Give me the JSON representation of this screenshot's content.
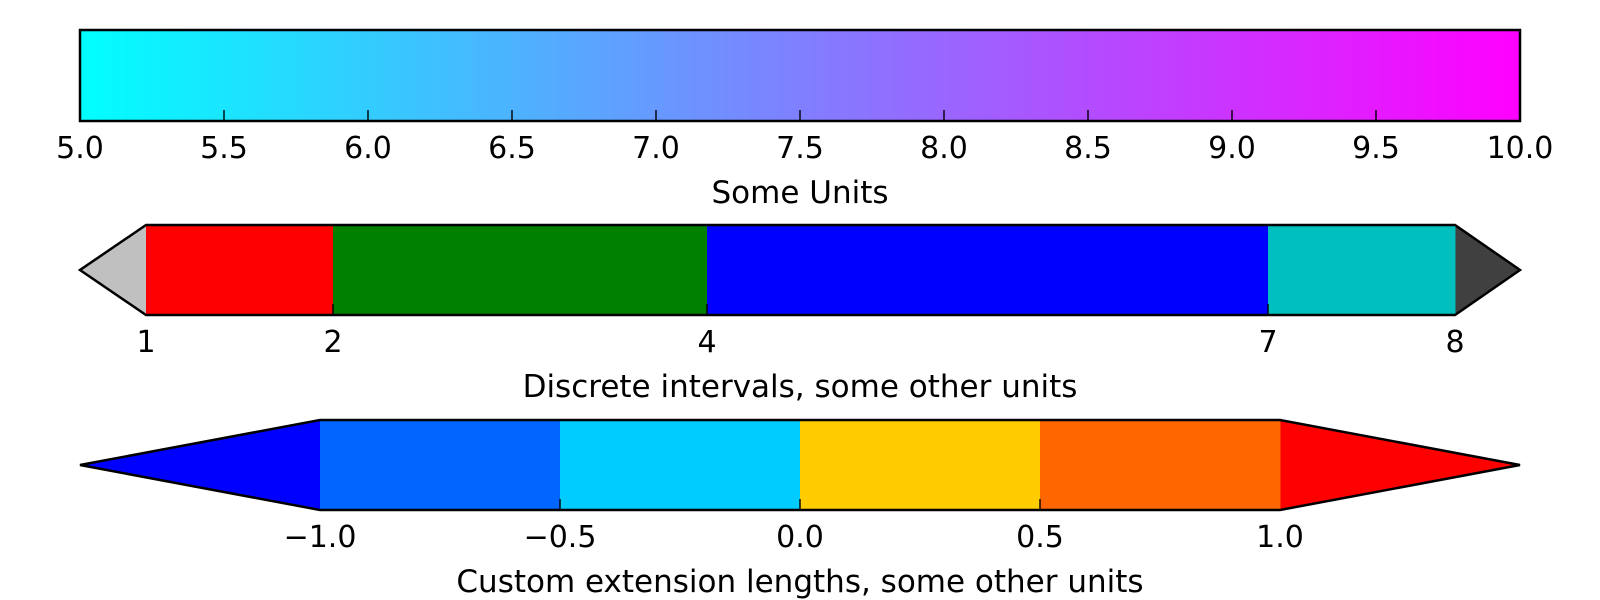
{
  "chart_data": [
    {
      "type": "colorbar",
      "label": "Some Units",
      "range": [
        5.0,
        10.0
      ],
      "gradient": [
        "#00ffff",
        "#ff00ff"
      ],
      "ticks": [
        5.0,
        5.5,
        6.0,
        6.5,
        7.0,
        7.5,
        8.0,
        8.5,
        9.0,
        9.5,
        10.0
      ],
      "tick_labels": [
        "5.0",
        "5.5",
        "6.0",
        "6.5",
        "7.0",
        "7.5",
        "8.0",
        "8.5",
        "9.0",
        "9.5",
        "10.0"
      ],
      "extend": "neither"
    },
    {
      "type": "colorbar",
      "label": "Discrete intervals, some other units",
      "bounds": [
        1,
        2,
        4,
        7,
        8
      ],
      "colors": [
        "#ff0000",
        "#008000",
        "#0000ff",
        "#00bfbf"
      ],
      "ticks": [
        1,
        2,
        4,
        7,
        8
      ],
      "tick_labels": [
        "1",
        "2",
        "4",
        "7",
        "8"
      ],
      "spacing": "proportional",
      "extend": "both",
      "under_color": "#c0c0c0",
      "over_color": "#404040"
    },
    {
      "type": "colorbar",
      "label": "Custom extension lengths, some other units",
      "bounds": [
        -1.0,
        -0.5,
        0.0,
        0.5,
        1.0
      ],
      "colors": [
        "#0066ff",
        "#00ccff",
        "#ffcc00",
        "#ff6600"
      ],
      "ticks": [
        -1.0,
        -0.5,
        0.0,
        0.5,
        1.0
      ],
      "tick_labels": [
        "−1.0",
        "−0.5",
        "0.0",
        "0.5",
        "1.0"
      ],
      "spacing": "uniform",
      "extend": "both",
      "extend_length": "long",
      "under_color": "#0000ff",
      "over_color": "#ff0000"
    }
  ]
}
